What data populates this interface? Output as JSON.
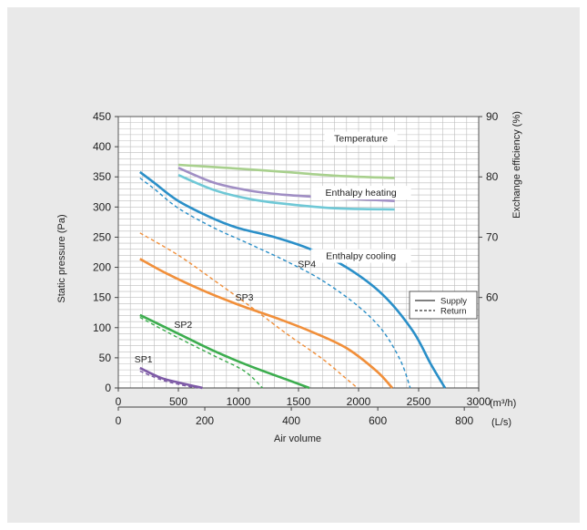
{
  "chart_data": {
    "type": "line",
    "title": "",
    "xlabel": "Air volume",
    "x_unit_primary": "(m³/h)",
    "x_unit_secondary": "(L/s)",
    "ylabel_left": "Static pressure (Pa)",
    "ylabel_right": "Exchange efficiency (%)",
    "xlim": [
      0,
      3000
    ],
    "ylim_left": [
      0,
      450
    ],
    "ylim_right": [
      45,
      90
    ],
    "x_ticks_primary": [
      0,
      500,
      1000,
      1500,
      2000,
      2500,
      3000
    ],
    "x_ticks_secondary": [
      0,
      200,
      400,
      600,
      800
    ],
    "y_ticks_left": [
      0,
      50,
      100,
      150,
      200,
      250,
      300,
      350,
      400,
      450
    ],
    "y_ticks_right": [
      60,
      70,
      80,
      90
    ],
    "grid": true,
    "legend_position": "right",
    "legend": [
      {
        "label": "Supply",
        "style": "solid"
      },
      {
        "label": "Return",
        "style": "dashed"
      }
    ],
    "pressure_series": [
      {
        "name": "SP1",
        "color": "#7d5aa6",
        "label_at": [
          210,
          42
        ],
        "supply": [
          [
            180,
            33
          ],
          [
            350,
            17
          ],
          [
            500,
            9
          ],
          [
            700,
            0
          ]
        ],
        "return": [
          [
            180,
            28
          ],
          [
            350,
            14
          ],
          [
            500,
            6
          ],
          [
            650,
            0
          ]
        ]
      },
      {
        "name": "SP2",
        "color": "#3cad4e",
        "label_at": [
          540,
          100
        ],
        "supply": [
          [
            180,
            121
          ],
          [
            500,
            90
          ],
          [
            800,
            61
          ],
          [
            1100,
            36
          ],
          [
            1400,
            14
          ],
          [
            1590,
            0
          ]
        ],
        "return": [
          [
            180,
            117
          ],
          [
            500,
            83
          ],
          [
            800,
            53
          ],
          [
            1050,
            28
          ],
          [
            1200,
            0
          ]
        ]
      },
      {
        "name": "SP3",
        "color": "#f18f3a",
        "label_at": [
          1050,
          145
        ],
        "supply": [
          [
            180,
            214
          ],
          [
            400,
            190
          ],
          [
            700,
            162
          ],
          [
            1000,
            138
          ],
          [
            1300,
            117
          ],
          [
            1600,
            94
          ],
          [
            1900,
            66
          ],
          [
            2150,
            28
          ],
          [
            2280,
            0
          ]
        ],
        "return": [
          [
            180,
            257
          ],
          [
            500,
            220
          ],
          [
            800,
            178
          ],
          [
            1100,
            135
          ],
          [
            1400,
            90
          ],
          [
            1700,
            48
          ],
          [
            1900,
            15
          ],
          [
            1990,
            0
          ]
        ]
      },
      {
        "name": "SP4",
        "color": "#2a8fc8",
        "label_at": [
          1570,
          200
        ],
        "supply": [
          [
            180,
            358
          ],
          [
            300,
            340
          ],
          [
            500,
            310
          ],
          [
            800,
            280
          ],
          [
            1000,
            265
          ],
          [
            1300,
            250
          ],
          [
            1600,
            230
          ],
          [
            1900,
            200
          ],
          [
            2200,
            155
          ],
          [
            2450,
            95
          ],
          [
            2600,
            40
          ],
          [
            2720,
            0
          ]
        ],
        "return": [
          [
            180,
            348
          ],
          [
            300,
            330
          ],
          [
            500,
            298
          ],
          [
            800,
            265
          ],
          [
            1100,
            238
          ],
          [
            1400,
            210
          ],
          [
            1700,
            178
          ],
          [
            2000,
            135
          ],
          [
            2200,
            95
          ],
          [
            2350,
            45
          ],
          [
            2430,
            0
          ]
        ]
      }
    ],
    "efficiency_series": [
      {
        "name": "Temperature",
        "color": "#a8d08d",
        "label_at": [
          2020,
          86
        ],
        "points": [
          [
            500,
            82
          ],
          [
            900,
            81.5
          ],
          [
            1400,
            80.8
          ],
          [
            1800,
            80.2
          ],
          [
            2300,
            79.8
          ]
        ]
      },
      {
        "name": "Enthalpy heating",
        "color": "#a08ec4",
        "label_at": [
          2020,
          77
        ],
        "points": [
          [
            500,
            81.5
          ],
          [
            800,
            79
          ],
          [
            1100,
            77.7
          ],
          [
            1400,
            77
          ],
          [
            1800,
            76.5
          ],
          [
            2300,
            76
          ]
        ]
      },
      {
        "name": "Enthalpy cooling",
        "color": "#6fc8d6",
        "label_at": [
          2020,
          66.5
        ],
        "points": [
          [
            500,
            80.3
          ],
          [
            800,
            77.8
          ],
          [
            1100,
            76.3
          ],
          [
            1400,
            75.5
          ],
          [
            1800,
            74.8
          ],
          [
            2300,
            74.6
          ]
        ]
      }
    ]
  }
}
